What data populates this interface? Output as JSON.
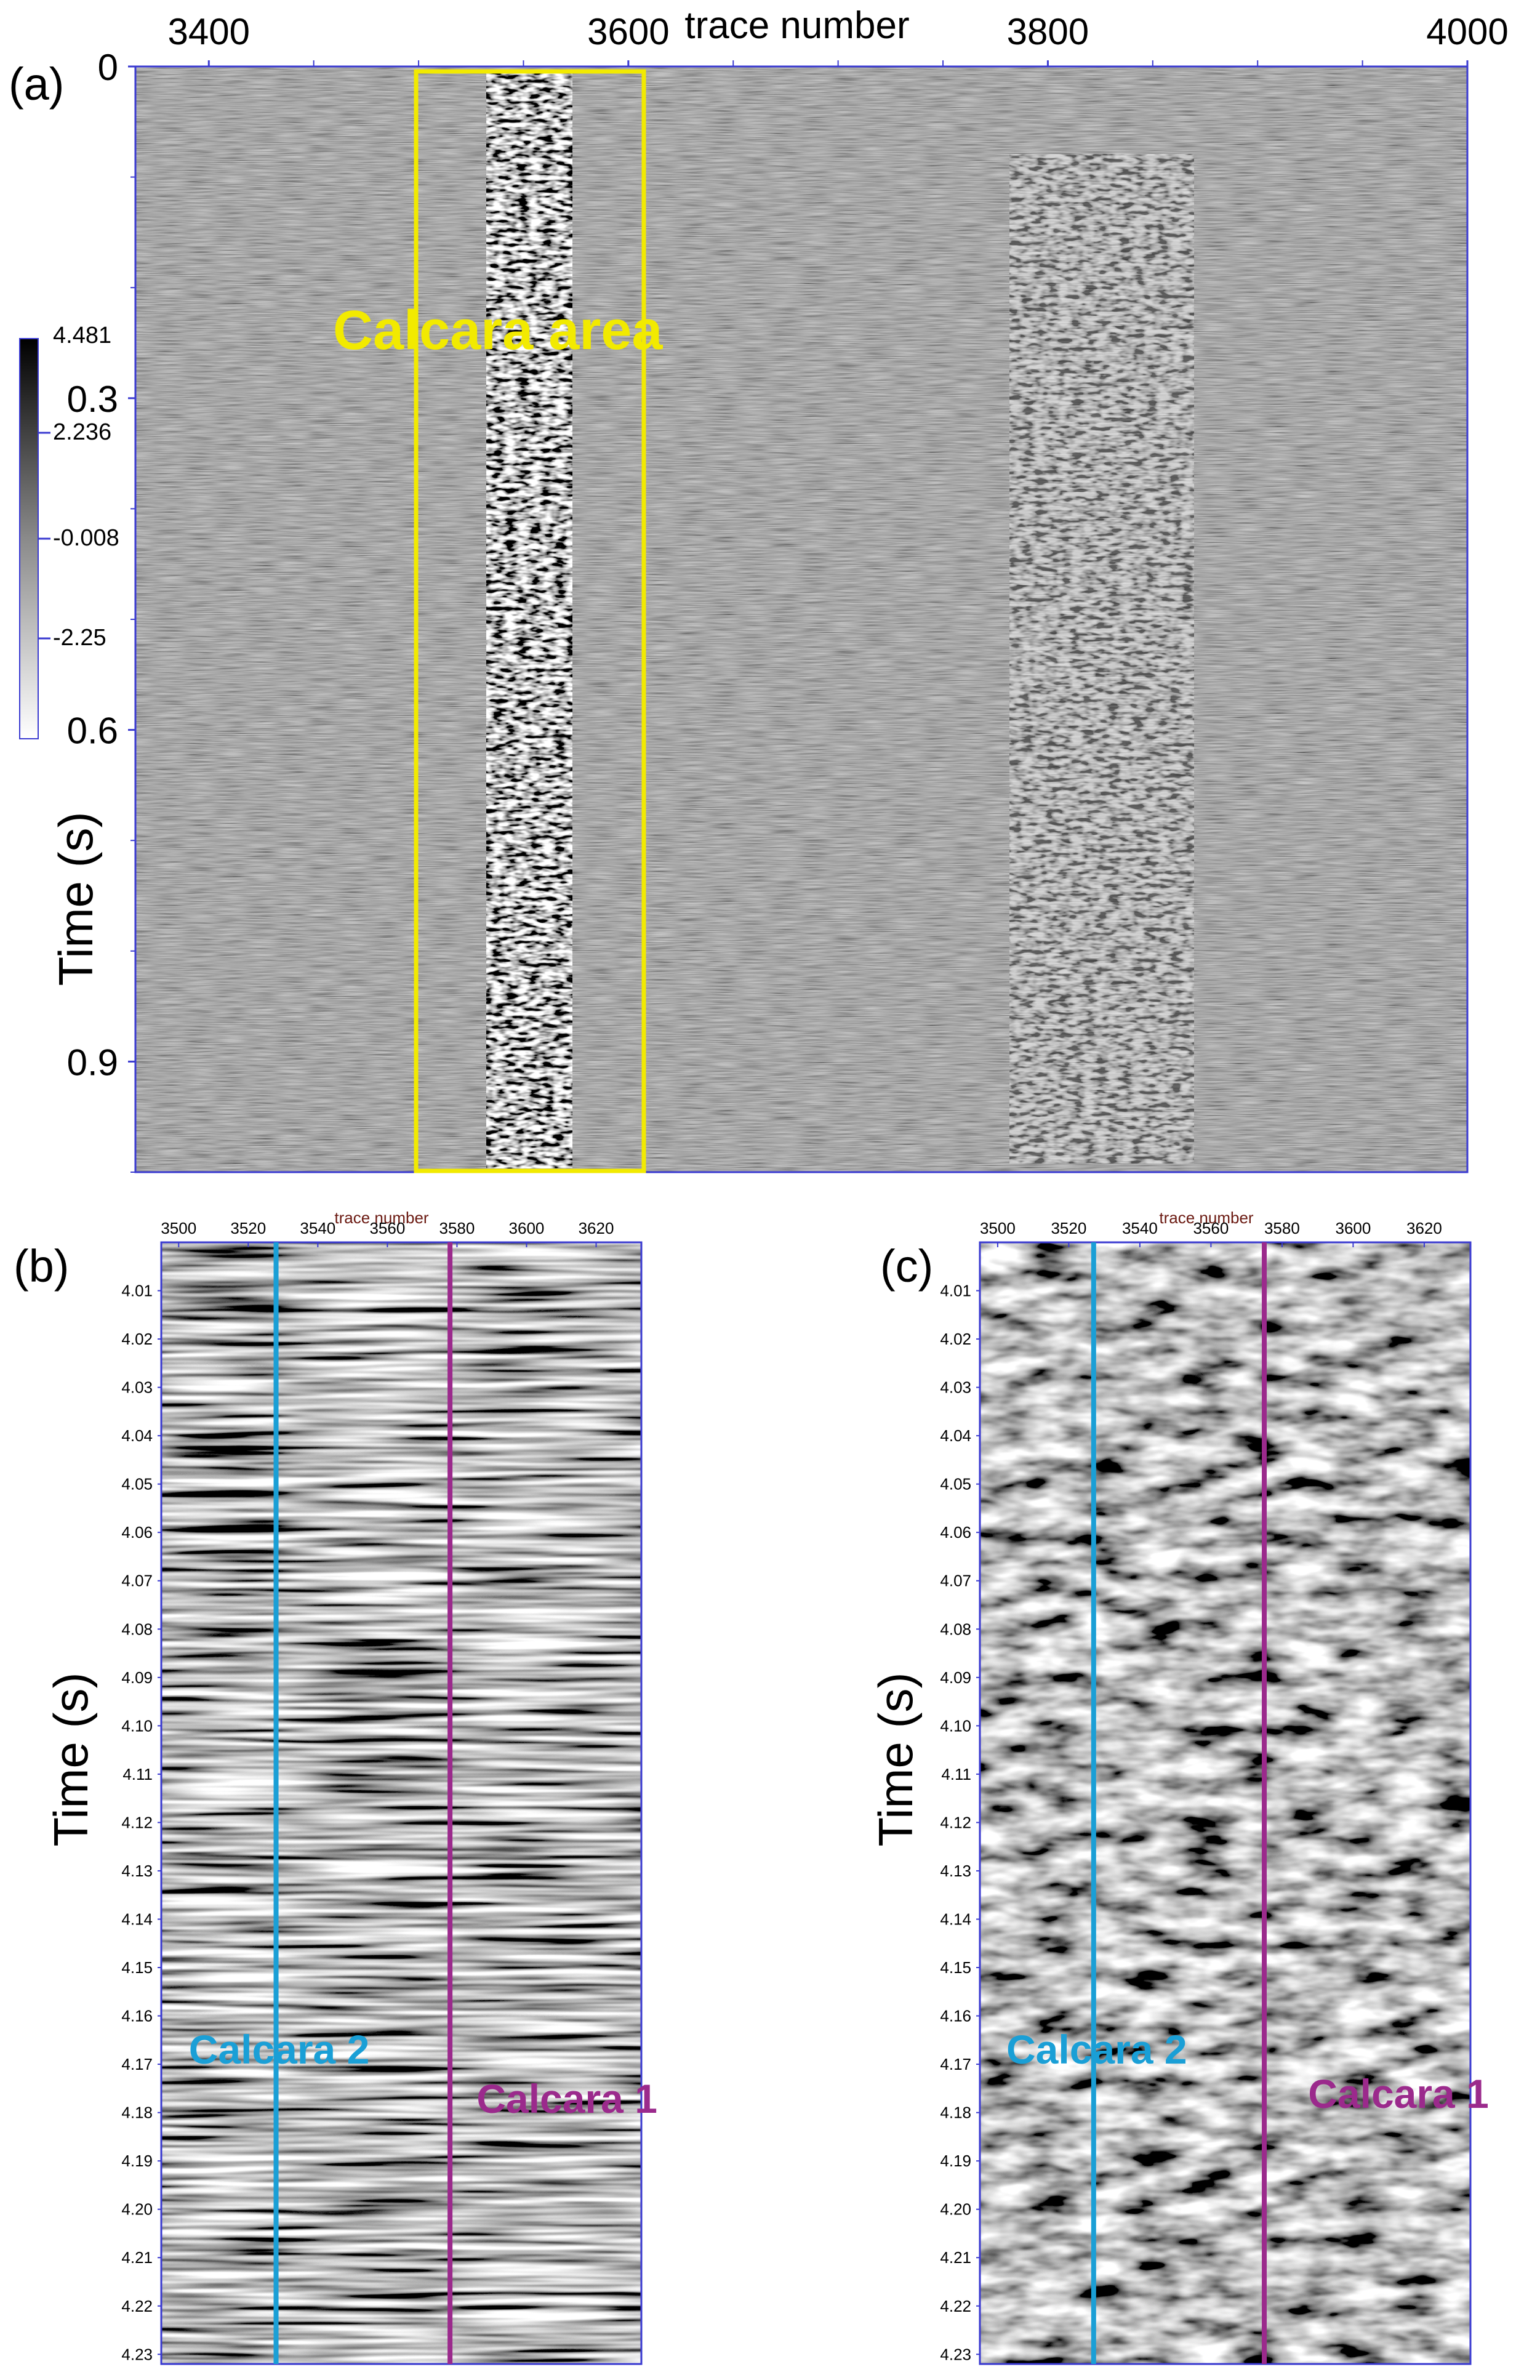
{
  "figure": {
    "panel_labels": [
      "(a)",
      "(b)",
      "(c)"
    ]
  },
  "colors": {
    "frame": "#3a3ad0",
    "yellow_box": "#f2ea00",
    "calcara_2": "#1a9fd6",
    "calcara_1": "#9b2a8c",
    "top_xlabel_small": "#6b1a12"
  },
  "chart_data": [
    {
      "type": "heatmap",
      "panel": "(a)",
      "xlabel": "trace number",
      "ylabel": "Time (s)",
      "x_ticks": [
        3400,
        3600,
        3800,
        4000
      ],
      "xlim": [
        3365,
        4000
      ],
      "y_ticks": [
        0,
        0.3,
        0.6,
        0.9
      ],
      "ylim": [
        0,
        1.0
      ],
      "colorbar": {
        "ticks": [
          "4.481",
          "2.236",
          "-0.008",
          "-2.25"
        ],
        "colors": [
          "#000000",
          "#ffffff"
        ]
      },
      "annotations": [
        {
          "text": "Calcara area",
          "trace_range": [
            3497,
            3606
          ],
          "color": "yellow"
        }
      ],
      "features": [
        {
          "name": "strong reflector band",
          "trace_center": 3560
        },
        {
          "name": "diffraction apex",
          "trace_center": 3835
        }
      ]
    },
    {
      "type": "heatmap",
      "panel": "(b)",
      "xlabel": "trace number",
      "ylabel": "Time (s)",
      "x_ticks": [
        3500,
        3520,
        3540,
        3560,
        3580,
        3600,
        3620
      ],
      "xlim": [
        3495,
        3633
      ],
      "y_ticks": [
        "4.01",
        "4.02",
        "4.03",
        "4.04",
        "4.05",
        "4.06",
        "4.07",
        "4.08",
        "4.09",
        "4.10",
        "4.11",
        "4.12",
        "4.13",
        "4.14",
        "4.15",
        "4.16",
        "4.17",
        "4.18",
        "4.19",
        "4.20",
        "4.21",
        "4.22",
        "4.23"
      ],
      "ylim": [
        4.0,
        4.232
      ],
      "lines": [
        {
          "label": "Calcara 2",
          "trace": 3528,
          "color": "#1a9fd6"
        },
        {
          "label": "Calcara 1",
          "trace": 3578,
          "color": "#9b2a8c"
        }
      ]
    },
    {
      "type": "heatmap",
      "panel": "(c)",
      "xlabel": "trace number",
      "ylabel": "Time (s)",
      "x_ticks": [
        3500,
        3520,
        3540,
        3560,
        3580,
        3600,
        3620
      ],
      "xlim": [
        3495,
        3633
      ],
      "y_ticks": [
        "4.01",
        "4.02",
        "4.03",
        "4.04",
        "4.05",
        "4.06",
        "4.07",
        "4.08",
        "4.09",
        "4.10",
        "4.11",
        "4.12",
        "4.13",
        "4.14",
        "4.15",
        "4.16",
        "4.17",
        "4.18",
        "4.19",
        "4.20",
        "4.21",
        "4.22",
        "4.23"
      ],
      "ylim": [
        4.0,
        4.232
      ],
      "lines": [
        {
          "label": "Calcara 2",
          "trace": 3527,
          "color": "#1a9fd6"
        },
        {
          "label": "Calcara 1",
          "trace": 3575,
          "color": "#9b2a8c"
        }
      ]
    }
  ]
}
